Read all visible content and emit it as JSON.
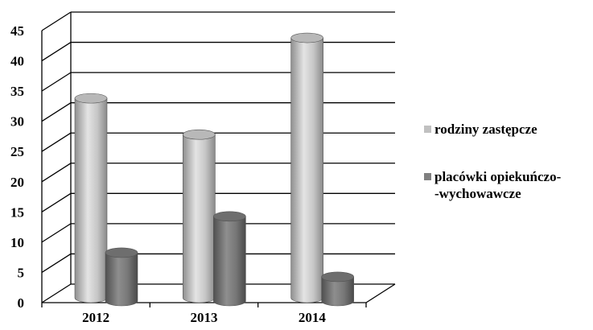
{
  "chart_data": {
    "type": "bar",
    "categories": [
      "2012",
      "2013",
      "2014"
    ],
    "series": [
      {
        "name": "rodziny zastępcze",
        "values": [
          33,
          27,
          43
        ],
        "color": "#c0c0c0"
      },
      {
        "name": "placówki opiekuńczo-\n-wychowawcze",
        "values": [
          8,
          14,
          4
        ],
        "color": "#808080"
      }
    ],
    "ylim": [
      0,
      45
    ],
    "yticks": [
      0,
      5,
      10,
      15,
      20,
      25,
      30,
      35,
      40,
      45
    ],
    "grid": true,
    "legend_position": "right",
    "style": "3d-cylinder"
  }
}
